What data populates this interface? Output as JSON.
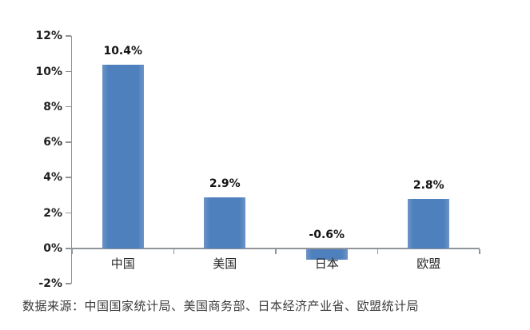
{
  "figure": {
    "background": "#ffffff"
  },
  "chart_data": {
    "type": "bar",
    "categories": [
      "中国",
      "美国",
      "日本",
      "欧盟"
    ],
    "values": [
      10.4,
      2.9,
      -0.6,
      2.8
    ],
    "data_labels": [
      "10.4%",
      "2.9%",
      "-0.6%",
      "2.8%"
    ],
    "y_tick_labels": [
      "12%",
      "10%",
      "8%",
      "6%",
      "4%",
      "2%",
      "0%",
      "-2%"
    ],
    "y_tick_values": [
      12,
      10,
      8,
      6,
      4,
      2,
      0,
      -2
    ],
    "ylim": [
      -2,
      12
    ],
    "title": "",
    "xlabel": "",
    "ylabel": "",
    "grid": false,
    "legend_position": "none",
    "bar_color": "#4E80BD",
    "bar_edge_color": "#6D94C7",
    "axis_color": "#8F9498",
    "label_color": "#1F1F1F"
  },
  "source_note": "数据来源：中国国家统计局、美国商务部、日本经济产业省、欧盟统计局"
}
